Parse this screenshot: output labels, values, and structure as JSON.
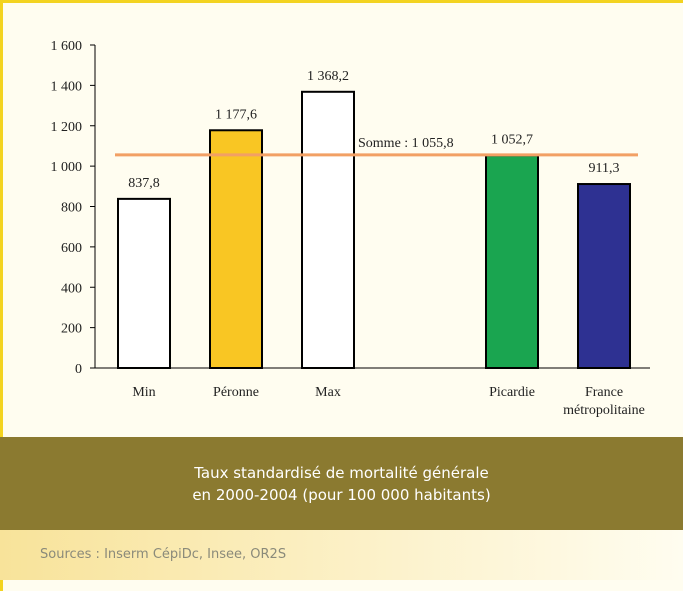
{
  "chart_data": {
    "type": "bar",
    "categories": [
      "Min",
      "Péronne",
      "Max",
      null,
      "Picardie",
      "France métropolitaine"
    ],
    "values": [
      837.8,
      1177.6,
      1368.2,
      null,
      1052.7,
      911.3
    ],
    "value_labels": [
      "837,8",
      "1 177,6",
      "1 368,2",
      null,
      "1 052,7",
      "911,3"
    ],
    "colors": [
      "#ffffff",
      "#f9c623",
      "#ffffff",
      null,
      "#1aa550",
      "#2e3192"
    ],
    "reference_line": {
      "value": 1055.8,
      "label": "Somme : 1 055,8",
      "color": "#f2a064"
    },
    "ylim": [
      0,
      1600
    ],
    "yticks": [
      0,
      200,
      400,
      600,
      800,
      {
        "value": 1000,
        "label": "1 000"
      },
      {
        "value": 1200,
        "label": "1 200"
      },
      {
        "value": 1400,
        "label": "1 400"
      },
      {
        "value": 1600,
        "label": "1 600"
      }
    ],
    "caption": [
      "Taux standardisé de mortalité générale",
      "en 2000-2004 (pour 100 000 habitants)"
    ],
    "sources": "Sources : Inserm CépiDc, Insee, OR2S"
  }
}
